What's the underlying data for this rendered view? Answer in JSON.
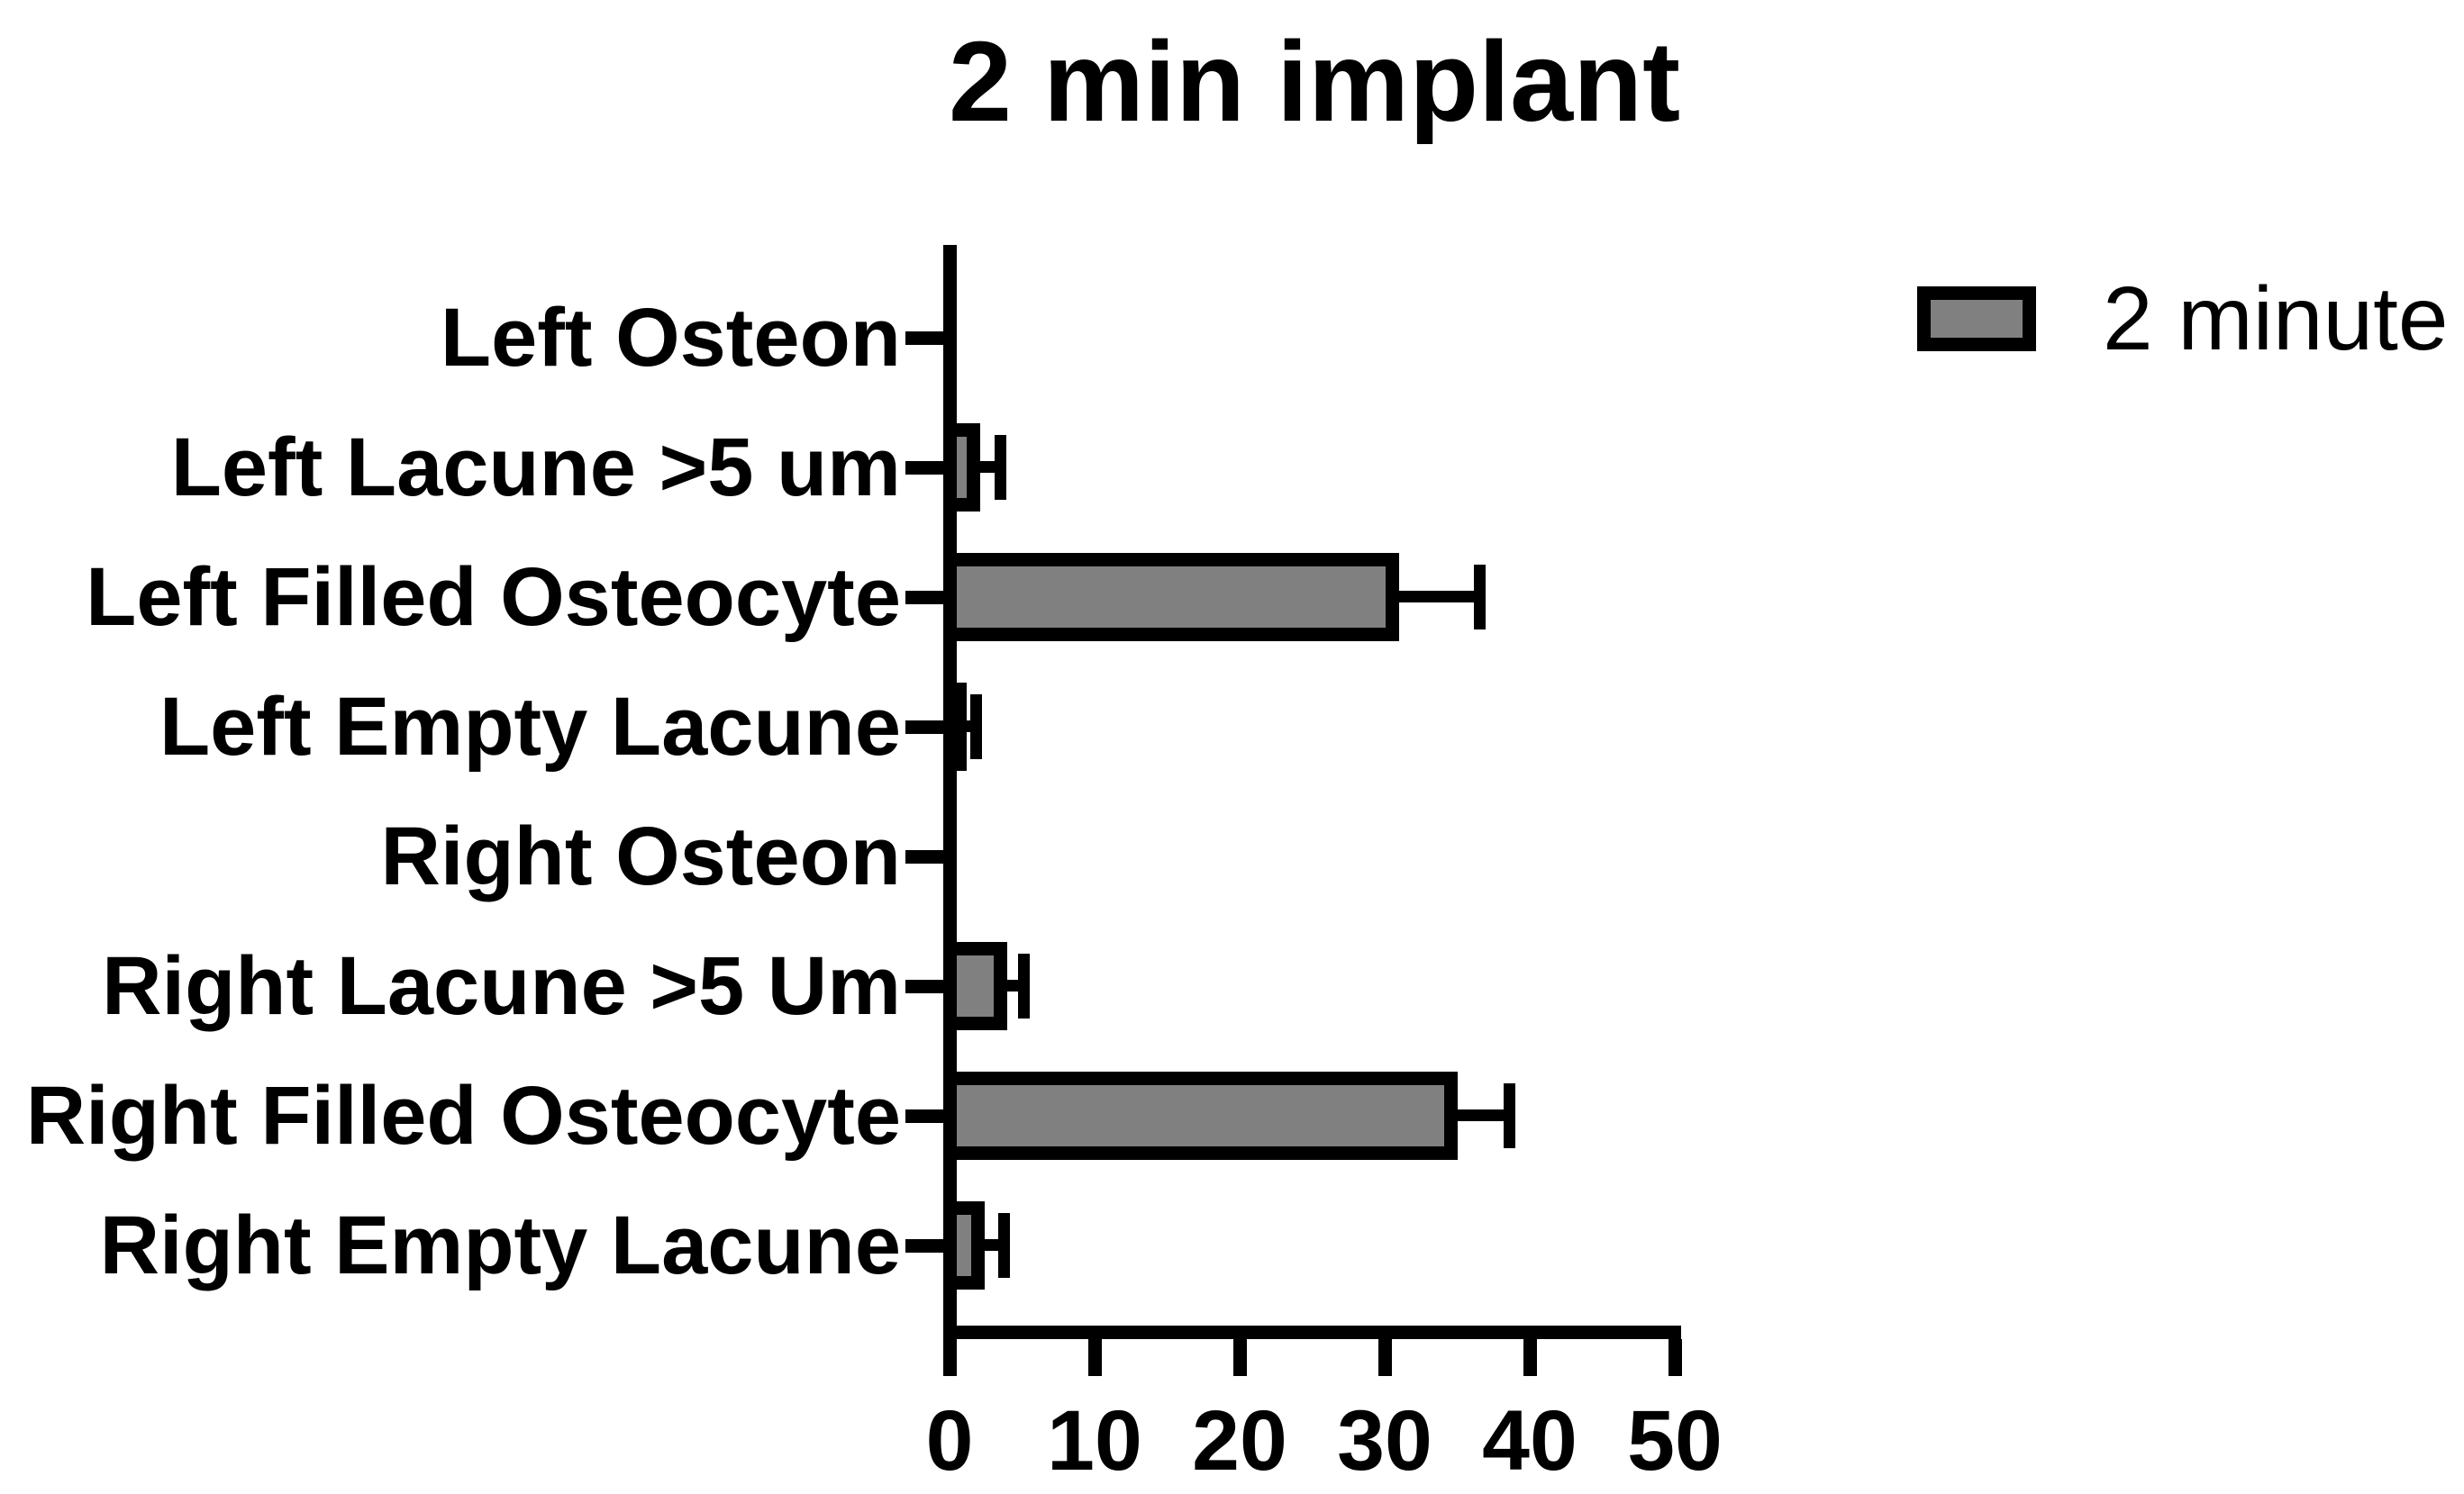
{
  "title": "2 min implant",
  "legend": {
    "label": "2 minute",
    "swatch_fill": "#808080",
    "swatch_border": "#000000"
  },
  "chart_data": {
    "type": "bar",
    "orientation": "horizontal",
    "title": "2 min implant",
    "categories": [
      "Left Osteon",
      "Left Lacune >5 um",
      "Left Filled Osteocyte",
      "Left Empty Lacune",
      "Right Osteon",
      "Right Lacune >5 Um",
      "Right Filled Osteocyte",
      "Right Empty Lacune"
    ],
    "series": [
      {
        "name": "2 minute",
        "values": [
          0,
          2.1,
          31,
          1.2,
          0,
          4,
          35,
          2.4
        ],
        "errors_plus": [
          0,
          1.4,
          5.5,
          0.6,
          0,
          1.1,
          3.6,
          1.3
        ]
      }
    ],
    "xlabel": "",
    "ylabel": "",
    "x_ticks": [
      0,
      10,
      20,
      30,
      40,
      50
    ],
    "xlim": [
      0,
      50
    ],
    "bar_fill": "#808080",
    "bar_outline": "#000000",
    "error_bar_color": "#000000",
    "grid": false,
    "legend_position": "top-right"
  }
}
